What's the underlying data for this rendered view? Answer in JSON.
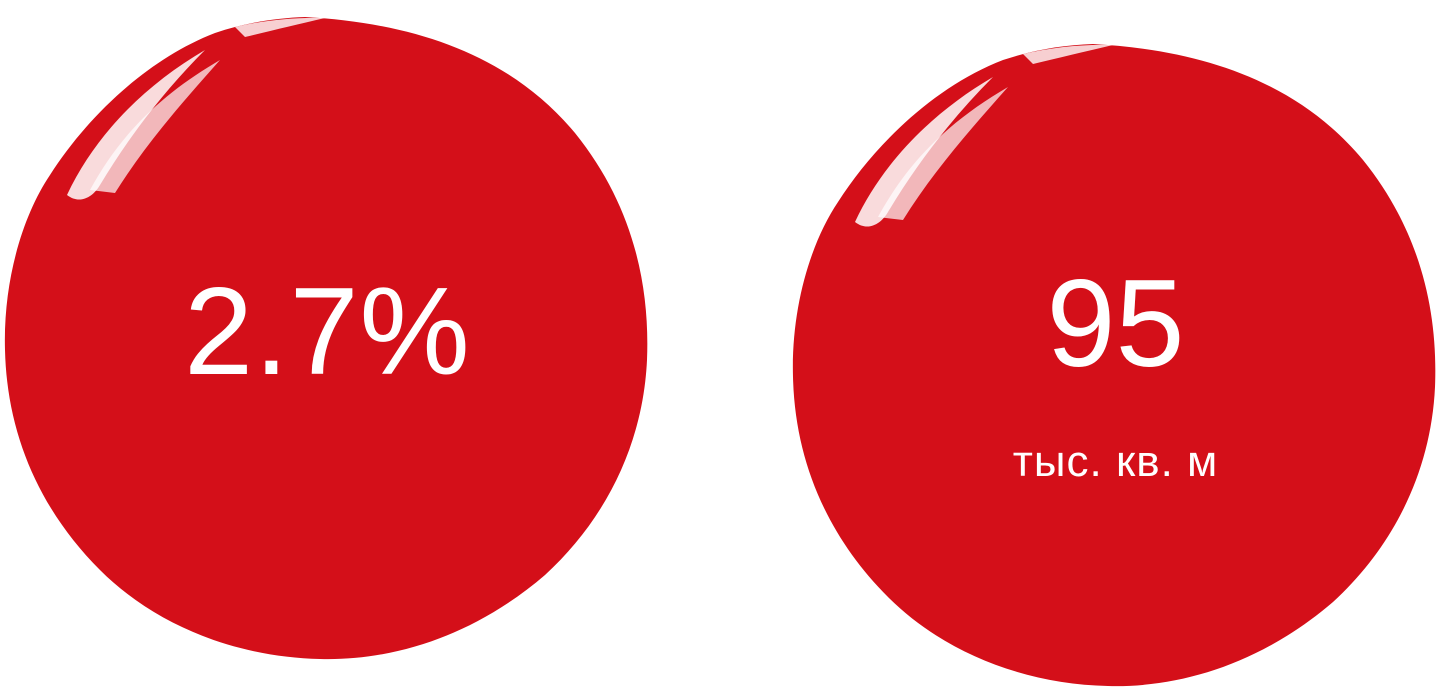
{
  "brand_color": "#d40f19",
  "text_color": "#ffffff",
  "stats": [
    {
      "value": "2.7%",
      "unit": ""
    },
    {
      "value": "95",
      "unit": "тыс. кв. м"
    }
  ]
}
